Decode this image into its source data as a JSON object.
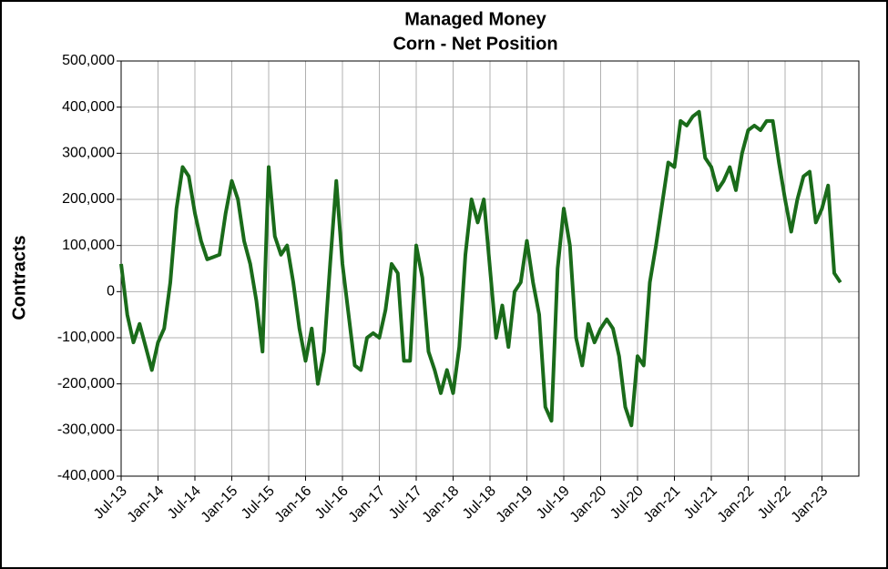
{
  "chart_data": {
    "type": "line",
    "title": "Managed Money",
    "subtitle": "Corn - Net Position",
    "y_label": "Contracts",
    "x": [
      "Jul-13",
      "Aug-13",
      "Sep-13",
      "Oct-13",
      "Nov-13",
      "Dec-13",
      "Jan-14",
      "Feb-14",
      "Mar-14",
      "Apr-14",
      "May-14",
      "Jun-14",
      "Jul-14",
      "Aug-14",
      "Sep-14",
      "Oct-14",
      "Nov-14",
      "Dec-14",
      "Jan-15",
      "Feb-15",
      "Mar-15",
      "Apr-15",
      "May-15",
      "Jun-15",
      "Jul-15",
      "Aug-15",
      "Sep-15",
      "Oct-15",
      "Nov-15",
      "Dec-15",
      "Jan-16",
      "Feb-16",
      "Mar-16",
      "Apr-16",
      "May-16",
      "Jun-16",
      "Jul-16",
      "Aug-16",
      "Sep-16",
      "Oct-16",
      "Nov-16",
      "Dec-16",
      "Jan-17",
      "Feb-17",
      "Mar-17",
      "Apr-17",
      "May-17",
      "Jun-17",
      "Jul-17",
      "Aug-17",
      "Sep-17",
      "Oct-17",
      "Nov-17",
      "Dec-17",
      "Jan-18",
      "Feb-18",
      "Mar-18",
      "Apr-18",
      "May-18",
      "Jun-18",
      "Jul-18",
      "Aug-18",
      "Sep-18",
      "Oct-18",
      "Nov-18",
      "Dec-18",
      "Jan-19",
      "Feb-19",
      "Mar-19",
      "Apr-19",
      "May-19",
      "Jun-19",
      "Jul-19",
      "Aug-19",
      "Sep-19",
      "Oct-19",
      "Nov-19",
      "Dec-19",
      "Jan-20",
      "Feb-20",
      "Mar-20",
      "Apr-20",
      "May-20",
      "Jun-20",
      "Jul-20",
      "Aug-20",
      "Sep-20",
      "Oct-20",
      "Nov-20",
      "Dec-20",
      "Jan-21",
      "Feb-21",
      "Mar-21",
      "Apr-21",
      "May-21",
      "Jun-21",
      "Jul-21",
      "Aug-21",
      "Sep-21",
      "Oct-21",
      "Nov-21",
      "Dec-21",
      "Jan-22",
      "Feb-22",
      "Mar-22",
      "Apr-22",
      "May-22",
      "Jun-22",
      "Jul-22",
      "Aug-22",
      "Sep-22",
      "Oct-22",
      "Nov-22",
      "Dec-22",
      "Jan-23",
      "Feb-23",
      "Mar-23",
      "Apr-23"
    ],
    "series": [
      {
        "name": "Net Position",
        "color": "#1a6b1a",
        "values": [
          60000,
          -50000,
          -110000,
          -70000,
          -120000,
          -170000,
          -110000,
          -80000,
          20000,
          180000,
          270000,
          250000,
          170000,
          110000,
          70000,
          75000,
          80000,
          170000,
          240000,
          200000,
          110000,
          60000,
          -20000,
          -130000,
          270000,
          120000,
          80000,
          100000,
          20000,
          -80000,
          -150000,
          -80000,
          -200000,
          -130000,
          60000,
          240000,
          60000,
          -50000,
          -160000,
          -170000,
          -100000,
          -90000,
          -100000,
          -40000,
          60000,
          40000,
          -150000,
          -150000,
          100000,
          30000,
          -130000,
          -170000,
          -220000,
          -170000,
          -220000,
          -120000,
          80000,
          200000,
          150000,
          200000,
          50000,
          -100000,
          -30000,
          -120000,
          0,
          20000,
          110000,
          20000,
          -50000,
          -250000,
          -280000,
          50000,
          180000,
          100000,
          -100000,
          -160000,
          -70000,
          -110000,
          -80000,
          -60000,
          -80000,
          -140000,
          -250000,
          -290000,
          -140000,
          -160000,
          20000,
          100000,
          190000,
          280000,
          270000,
          370000,
          360000,
          380000,
          390000,
          290000,
          270000,
          220000,
          240000,
          270000,
          220000,
          300000,
          350000,
          360000,
          350000,
          370000,
          370000,
          280000,
          200000,
          130000,
          200000,
          250000,
          260000,
          150000,
          180000,
          230000,
          40000,
          20000
        ]
      }
    ],
    "ylim": [
      -400000,
      500000
    ],
    "yticks": [
      {
        "value": -400000,
        "label": "-400,000"
      },
      {
        "value": -300000,
        "label": "-300,000"
      },
      {
        "value": -200000,
        "label": "-200,000"
      },
      {
        "value": -100000,
        "label": "-100,000"
      },
      0,
      {
        "value": 100000,
        "label": "100,000"
      },
      {
        "value": 200000,
        "label": "200,000"
      },
      {
        "value": 300000,
        "label": "300,000"
      },
      {
        "value": 400000,
        "label": "400,000"
      },
      {
        "value": 500000,
        "label": "500,000"
      }
    ],
    "xticks": [
      "Jul-13",
      "Jan-14",
      "Jul-14",
      "Jan-15",
      "Jul-15",
      "Jan-16",
      "Jul-16",
      "Jan-17",
      "Jul-17",
      "Jan-18",
      "Jul-18",
      "Jan-19",
      "Jul-19",
      "Jan-20",
      "Jul-20",
      "Jan-21",
      "Jul-21",
      "Jan-22",
      "Jul-22",
      "Jan-23"
    ],
    "grid": true
  }
}
